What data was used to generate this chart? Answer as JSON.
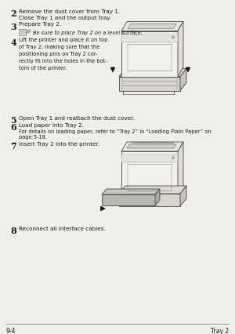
{
  "bg_color": "#f0eeeb",
  "text_color": "#1a1a1a",
  "footer_color": "#1a1a1a",
  "page_number": "9-4",
  "page_title": "Tray 2",
  "line_color": "#555555",
  "printer_fill": "#f2f0ed",
  "printer_edge": "#444444",
  "tray_fill": "#d8d4ce",
  "arrow_color": "#1a1a1a",
  "note_icon_fill": "#c8c4be",
  "step2_line1": "Remove the dust cover from Tray 1.",
  "step2_line2": "Close Tray 1 and the output tray.",
  "step3_line1": "Prepare Tray 2.",
  "note_line": "Be sure to place Tray 2 on a level surface.",
  "step4_lines": [
    "Lift the printer and place it on top",
    "of Tray 2, making sure that the",
    "positioning pins on Tray 2 cor-",
    "rectly fit into the holes in the bot-",
    "tom of the printer."
  ],
  "step5_line": "Open Tray 1 and reattach the dust cover.",
  "step6_line1": "Load paper into Tray 2.",
  "step6_line2": "For details on loading paper, refer to “Tray 2” in “Loading Plain Paper” on",
  "step6_line3": "page 5-18.",
  "step7_line": "Insert Tray 2 into the printer.",
  "step8_line": "Reconnect all interface cables."
}
